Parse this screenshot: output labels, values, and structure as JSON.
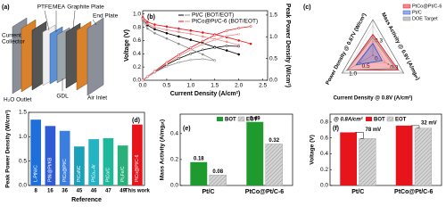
{
  "diagram": {
    "panel_label": "(a)",
    "labels": {
      "current_collector": [
        "Current",
        "Collector"
      ],
      "ptfe": "PTFE",
      "mea": "MEA",
      "graphite_plate": "Graphite Plate",
      "end_plate": "End Plate",
      "gdl": "GDL",
      "air_inlet": "Air Inlet",
      "h2o_outlet": "H₂O Outlet"
    }
  },
  "chart_data": [
    {
      "type": "line",
      "panel_label": "(b)",
      "xlabel": "Current Density (A/cm²)",
      "ylabel": "Voltage (V)",
      "y2label": "Peak Power Density (W/cm²)",
      "xlim": [
        0,
        2.6
      ],
      "xticks": [
        {
          "value": 0,
          "label": "0.0"
        },
        0.5,
        {
          "value": 1,
          "label": "1.0"
        },
        1.5,
        {
          "value": 2,
          "label": "2.0"
        },
        2.5
      ],
      "ylim": [
        0,
        1.05
      ],
      "yticks": [
        {
          "value": 0,
          "label": "0.0"
        },
        0.2,
        0.4,
        0.6,
        0.8,
        {
          "value": 1,
          "label": "1.0"
        }
      ],
      "y2lim": [
        0,
        1.6
      ],
      "y2ticks": [
        {
          "value": 0,
          "label": "0.0"
        },
        0.5,
        {
          "value": 1,
          "label": "1.0"
        },
        1.5
      ],
      "series": [
        {
          "name": "Pt/C (BOT/EOT)",
          "color": "#000000",
          "eot_color": "#8c8c8c",
          "bot": {
            "x": [
              0,
              0.1,
              0.25,
              0.5,
              0.75,
              1.0,
              1.25,
              1.5,
              1.75,
              2.0
            ],
            "voltage": [
              0.93,
              0.83,
              0.77,
              0.71,
              0.66,
              0.61,
              0.56,
              0.5,
              0.45,
              0.39
            ],
            "power": [
              0,
              0.08,
              0.19,
              0.36,
              0.5,
              0.61,
              0.7,
              0.75,
              0.79,
              0.78
            ]
          },
          "eot": {
            "x": [
              0,
              0.1,
              0.25,
              0.5,
              0.75,
              1.0,
              1.25,
              1.5
            ],
            "voltage": [
              0.9,
              0.78,
              0.71,
              0.63,
              0.55,
              0.47,
              0.39,
              0.3
            ],
            "power": [
              0,
              0.08,
              0.18,
              0.32,
              0.41,
              0.47,
              0.49,
              0.45
            ]
          }
        },
        {
          "name": "PtCo@Pt/C-6 (BOT/EOT)",
          "color": "#e8141b",
          "eot_color": "#f08a8a",
          "bot": {
            "x": [
              0,
              0.1,
              0.25,
              0.5,
              0.75,
              1.0,
              1.25,
              1.5,
              1.75,
              2.0,
              2.25
            ],
            "voltage": [
              0.95,
              0.88,
              0.84,
              0.81,
              0.78,
              0.75,
              0.72,
              0.69,
              0.65,
              0.6,
              0.55
            ],
            "power": [
              0,
              0.09,
              0.21,
              0.41,
              0.59,
              0.75,
              0.9,
              1.04,
              1.14,
              1.2,
              1.24
            ]
          },
          "eot": {
            "x": [
              0,
              0.1,
              0.25,
              0.5,
              0.75,
              1.0,
              1.25,
              1.5,
              1.75,
              2.0
            ],
            "voltage": [
              0.93,
              0.85,
              0.8,
              0.76,
              0.73,
              0.7,
              0.66,
              0.62,
              0.58,
              0.53
            ],
            "power": [
              0,
              0.09,
              0.2,
              0.38,
              0.55,
              0.7,
              0.83,
              0.93,
              1.02,
              1.06
            ]
          }
        }
      ]
    },
    {
      "type": "radar",
      "panel_label": "(c)",
      "axes": [
        {
          "label": "Power Density @ 0.67V (W/cm²)",
          "lim": [
            0,
            1.2
          ],
          "ticks": [
            0,
            0.5,
            {
              "value": 1,
              "label": "1.0"
            }
          ]
        },
        {
          "label": "Mass Activity @ 0.9V (A/mgₚₜ)",
          "lim": [
            0,
            0.6
          ],
          "ticks": [
            0.3
          ]
        },
        {
          "label": "Current Density @ 0.8V (A/cm²)",
          "lim": [
            0,
            0.6
          ],
          "ticks": [
            0.3
          ]
        }
      ],
      "series": [
        {
          "name": "PtCo@Pt/C-6",
          "color": "#e8141b",
          "values": [
            1.0,
            0.49,
            0.35
          ]
        },
        {
          "name": "Pt/C",
          "color": "#2f5bd3",
          "values": [
            0.65,
            0.18,
            0.2
          ]
        },
        {
          "name": "DOE Target",
          "color": "#8c8c8c",
          "values": [
            1.0,
            0.44,
            0.3
          ]
        }
      ]
    },
    {
      "type": "bar",
      "panel_label": "(d)",
      "ylabel": "Peak Power Density (W/cm²)",
      "xlabel": "Reference",
      "categories": [
        "8",
        "16",
        "36",
        "45",
        "46",
        "47",
        "49",
        "This work"
      ],
      "values": [
        1.35,
        1.22,
        1.12,
        0.8,
        0.95,
        0.97,
        0.82,
        1.25
      ],
      "bar_labels": [
        "L-PtNi/C",
        "PtNi@Pt/KB",
        "PtCo@Pt/C",
        "PtCoNC",
        "PtCo₃-Ar",
        "PtCo/C",
        "Pt₃Fe/C",
        "PtCo@Pt/C-6"
      ],
      "colors": [
        "#1e6fd9",
        "#2f5bd3",
        "#3a7fe0",
        "#1aa0b8",
        "#22b3c5",
        "#1fb89a",
        "#2ab07a",
        "#e8141b"
      ],
      "ylim": [
        0,
        1.5
      ],
      "yticks": [
        {
          "value": 0,
          "label": "0.0"
        },
        0.5,
        {
          "value": 1,
          "label": "1.0"
        },
        1.5
      ]
    },
    {
      "type": "grouped_bar",
      "panel_label": "(e)",
      "ylabel": "Mass Activity (A/mgₚₜ)",
      "categories": [
        "Pt/C",
        "PtCo@Pt/C-6"
      ],
      "series": [
        {
          "name": "BOT",
          "color": "#1f9a2e",
          "values": [
            0.18,
            0.49
          ]
        },
        {
          "name": "EOT",
          "color": "#c8c8c8",
          "hatch": true,
          "values": [
            0.08,
            0.32
          ]
        }
      ],
      "show_value_labels": true,
      "ylim": [
        0,
        0.55
      ],
      "yticks": [
        {
          "value": 0,
          "label": "0.0"
        },
        0.2,
        0.4
      ]
    },
    {
      "type": "grouped_bar",
      "panel_label": "(f)",
      "ylabel": "Voltage (V)",
      "legend_title": "@ 0.8A/cm²",
      "categories": [
        "Pt/C",
        "PtCo@Pt/C-6"
      ],
      "series": [
        {
          "name": "BOT",
          "color": "#e8141b",
          "values": [
            0.67,
            0.755
          ]
        },
        {
          "name": "EOT",
          "color": "#c8c8c8",
          "hatch": true,
          "values": [
            0.592,
            0.723
          ]
        }
      ],
      "annotations": [
        "78 mV",
        "32 mV"
      ],
      "ylim": [
        0,
        0.9
      ],
      "yticks": [
        {
          "value": 0,
          "label": "0.0"
        },
        0.2,
        0.4,
        0.6,
        0.8
      ]
    }
  ]
}
